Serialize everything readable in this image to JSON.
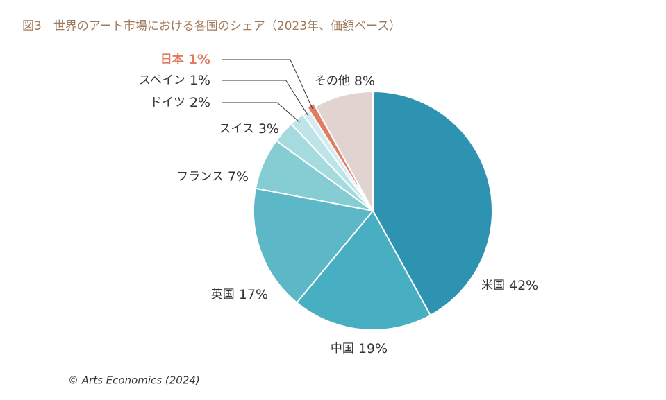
{
  "chart_data": {
    "type": "pie",
    "title": "図3　世界のアート市場における各国のシェア（2023年、価額ベース）",
    "categories": [
      "米国",
      "中国",
      "英国",
      "フランス",
      "スイス",
      "ドイツ",
      "スペイン",
      "日本",
      "その他"
    ],
    "values": [
      42,
      19,
      17,
      7,
      3,
      2,
      1,
      1,
      8
    ],
    "value_labels": [
      "42%",
      "19%",
      "17%",
      "7%",
      "3%",
      "2%",
      "1%",
      "1%",
      "8%"
    ],
    "colors": [
      "#2e93b0",
      "#48afc2",
      "#5cb8c7",
      "#86ccd3",
      "#a5dadf",
      "#bfe4e8",
      "#d2ecef",
      "#e27d65",
      "#e0d3d0"
    ],
    "source": "© Arts Economics (2024)"
  }
}
